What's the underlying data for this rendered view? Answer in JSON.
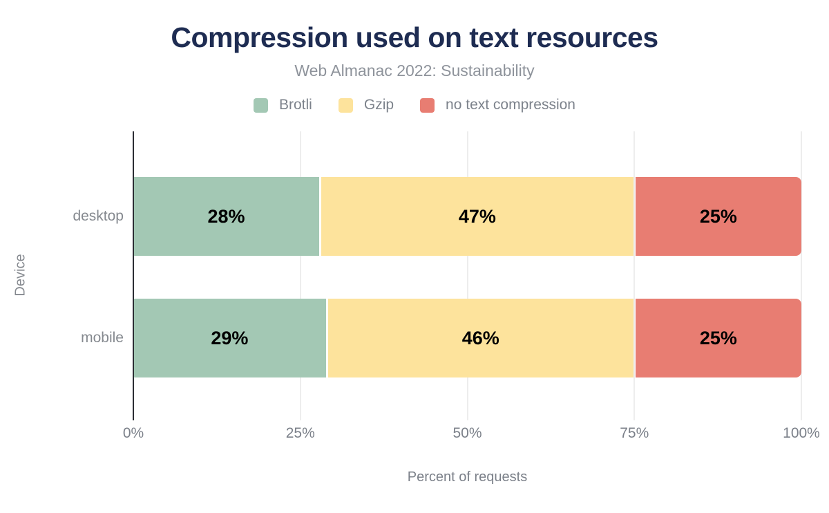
{
  "title": "Compression used on text resources",
  "subtitle": "Web Almanac 2022: Sustainability",
  "legend": [
    {
      "label": "Brotli",
      "color": "#a3c8b4"
    },
    {
      "label": "Gzip",
      "color": "#fde39c"
    },
    {
      "label": "no text compression",
      "color": "#e87d72"
    }
  ],
  "chart_data": {
    "type": "bar",
    "orientation": "horizontal",
    "stacked": true,
    "title": "Compression used on text resources",
    "subtitle": "Web Almanac 2022: Sustainability",
    "categories": [
      "desktop",
      "mobile"
    ],
    "series": [
      {
        "name": "Brotli",
        "color": "#a3c8b4",
        "values": [
          28,
          29
        ]
      },
      {
        "name": "Gzip",
        "color": "#fde39c",
        "values": [
          47,
          46
        ]
      },
      {
        "name": "no text compression",
        "color": "#e87d72",
        "values": [
          25,
          25
        ]
      }
    ],
    "value_labels": [
      [
        "28%",
        "47%",
        "25%"
      ],
      [
        "29%",
        "46%",
        "25%"
      ]
    ],
    "xlabel": "Percent of requests",
    "ylabel": "Device",
    "x_ticks": [
      "0%",
      "25%",
      "50%",
      "75%",
      "100%"
    ],
    "x_tick_positions": [
      0,
      25,
      50,
      75,
      100
    ],
    "xlim": [
      0,
      100
    ],
    "grid": true,
    "legend_position": "top"
  },
  "colors": {
    "title_text": "#1e2c52",
    "subtitle_text": "#8e939b",
    "axis_text": "#7b8089",
    "category_text": "#85898f",
    "value_text": "#000000",
    "gridline": "#ededed",
    "axis_line": "#2b2d33",
    "background": "#ffffff"
  }
}
